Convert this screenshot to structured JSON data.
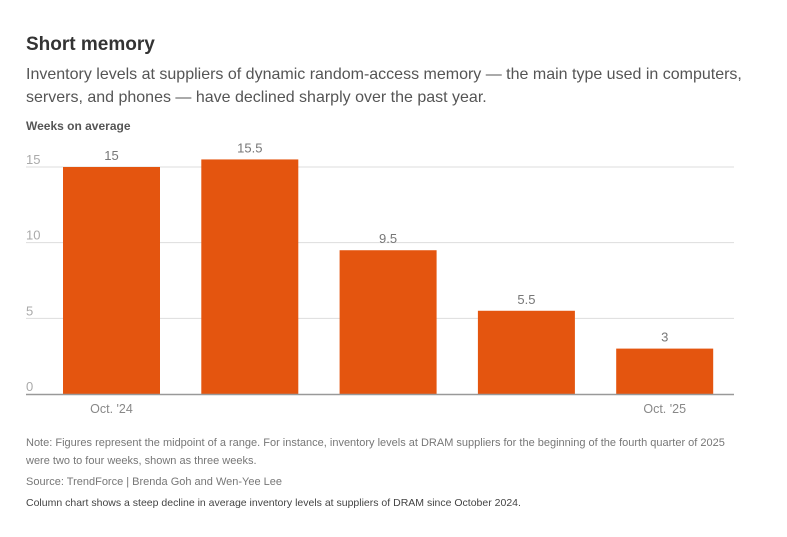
{
  "title": "Short memory",
  "subtitle": "Inventory levels at suppliers of dynamic random-access memory — the main type used in computers, servers, and phones — have declined sharply over the past year.",
  "note": "Note: Figures represent the midpoint of a range. For instance, inventory levels at DRAM suppliers for the beginning of the fourth quarter of 2025 were two to four weeks, shown as three weeks.",
  "source": "Source: TrendForce | Brenda Goh and Wen-Yee Lee",
  "alt": "Column chart shows a steep decline in average inventory levels at suppliers of DRAM since October 2024.",
  "chart_data": {
    "type": "bar",
    "title": "Short memory",
    "ylabel": "Weeks on average",
    "xlabel": "",
    "categories": [
      "Oct. '24",
      "",
      "",
      "",
      "Oct. '25"
    ],
    "values": [
      15,
      15.5,
      9.5,
      5.5,
      3
    ],
    "data_labels": [
      "15",
      "15.5",
      "9.5",
      "5.5",
      "3"
    ],
    "yticks": [
      0,
      5,
      10,
      15
    ],
    "ytick_labels": [
      "0",
      "5",
      "10",
      "15"
    ],
    "ylim": [
      0,
      15.5
    ],
    "grid": true,
    "bar_color": "#e4550f"
  }
}
